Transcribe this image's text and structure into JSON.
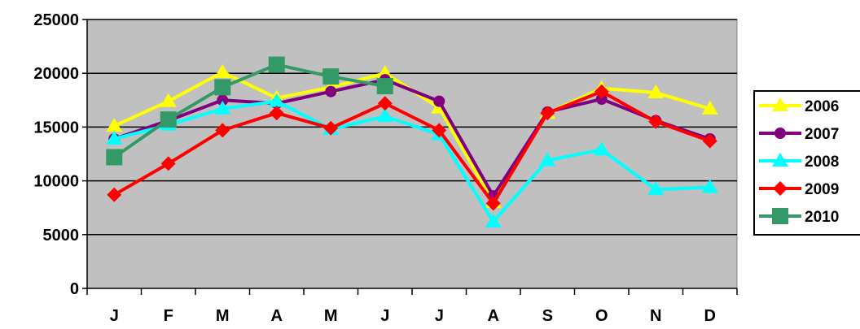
{
  "chart_data": {
    "type": "line",
    "categories": [
      "J",
      "F",
      "M",
      "A",
      "M",
      "J",
      "J",
      "A",
      "S",
      "O",
      "N",
      "D"
    ],
    "ylim": [
      0,
      25000
    ],
    "yticks": [
      0,
      5000,
      10000,
      15000,
      20000,
      25000
    ],
    "grid": true,
    "plot_background": "#c0c0c0",
    "legend_position": "right",
    "series": [
      {
        "name": "2006",
        "color": "#ffff00",
        "marker": "triangle",
        "values": [
          15100,
          17400,
          20100,
          17700,
          18700,
          20000,
          16800,
          8000,
          16300,
          18600,
          18200,
          16700
        ]
      },
      {
        "name": "2007",
        "color": "#800080",
        "marker": "circle",
        "values": [
          13900,
          15600,
          17500,
          17200,
          18300,
          19400,
          17400,
          8600,
          16400,
          17600,
          15600,
          13900
        ]
      },
      {
        "name": "2008",
        "color": "#00ffff",
        "marker": "triangle",
        "values": [
          13900,
          15200,
          16700,
          17400,
          14800,
          16000,
          14300,
          6200,
          11900,
          12900,
          9200,
          9400
        ]
      },
      {
        "name": "2009",
        "color": "#ff0000",
        "marker": "diamond",
        "values": [
          8700,
          11600,
          14700,
          16300,
          14900,
          17200,
          14700,
          7900,
          16300,
          18300,
          15500,
          13700
        ]
      },
      {
        "name": "2010",
        "color": "#339966",
        "marker": "square",
        "values": [
          12200,
          15700,
          18700,
          20800,
          19700,
          18800,
          null,
          null,
          null,
          null,
          null,
          null
        ]
      }
    ]
  }
}
